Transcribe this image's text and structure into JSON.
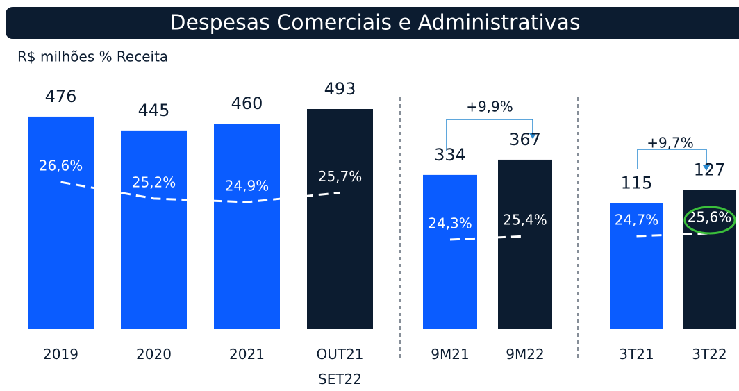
{
  "title": "Despesas Comerciais e Administrativas",
  "subtitle": "R$ milhões % Receita",
  "chart_data": [
    {
      "type": "bar",
      "categories": [
        "2019",
        "2020",
        "2021",
        "OUT21 SET22"
      ],
      "values": [
        476,
        445,
        460,
        493
      ],
      "colors": [
        "#0a5cff",
        "#0a5cff",
        "#0a5cff",
        "#0c1c30"
      ],
      "percent_values": [
        26.6,
        25.2,
        24.9,
        25.7
      ],
      "percent_labels": [
        "26,6%",
        "25,2%",
        "24,9%",
        "25,7%"
      ]
    },
    {
      "type": "bar",
      "categories": [
        "9M21",
        "9M22"
      ],
      "values": [
        334,
        367
      ],
      "colors": [
        "#0a5cff",
        "#0c1c30"
      ],
      "percent_values": [
        24.3,
        25.4
      ],
      "percent_labels": [
        "24,3%",
        "25,4%"
      ],
      "annotation": "+9,9%"
    },
    {
      "type": "bar",
      "categories": [
        "3T21",
        "3T22"
      ],
      "values": [
        115,
        127
      ],
      "colors": [
        "#0a5cff",
        "#0c1c30"
      ],
      "percent_values": [
        24.7,
        25.6
      ],
      "percent_labels": [
        "24,7%",
        "25,6%"
      ],
      "annotation": "+9,7%"
    }
  ]
}
